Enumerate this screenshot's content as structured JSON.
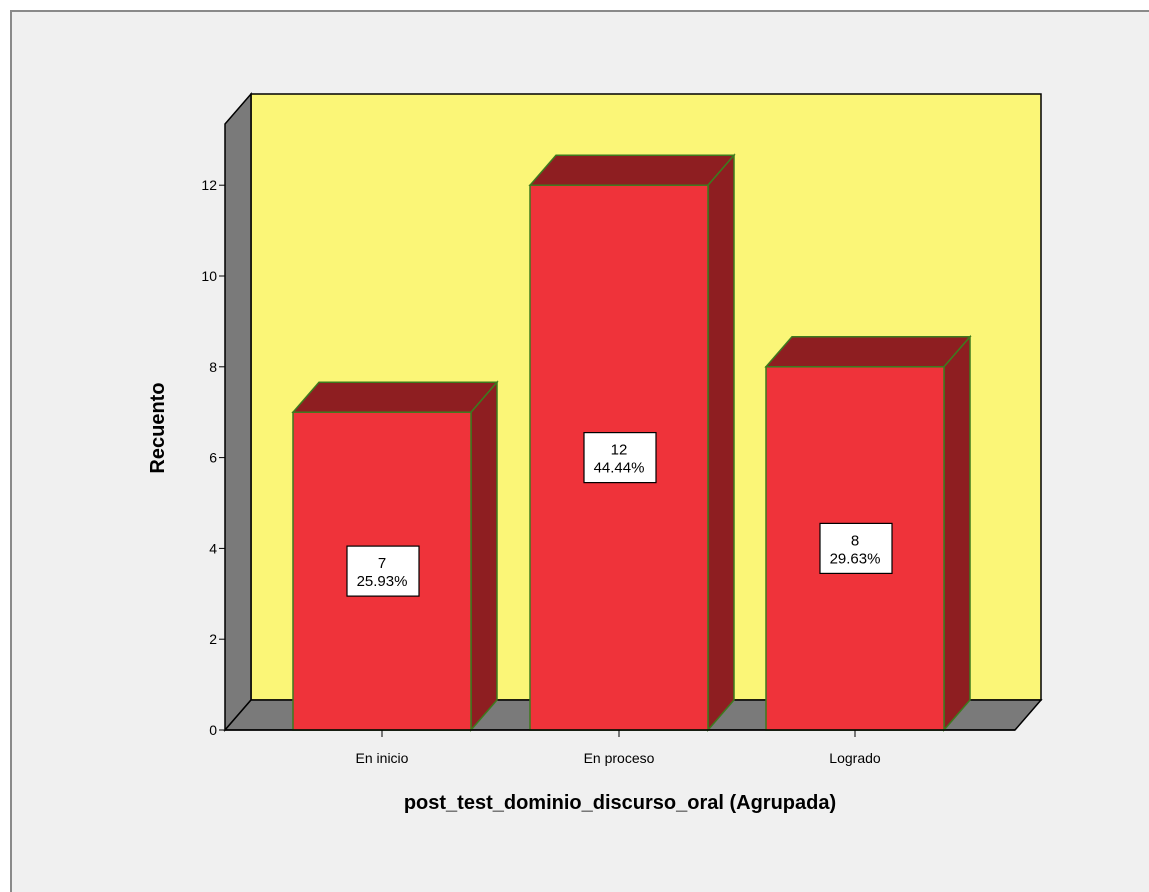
{
  "chart_data": {
    "type": "bar",
    "style": "3d",
    "categories": [
      "En inicio",
      "En proceso",
      "Logrado"
    ],
    "values": [
      7,
      12,
      8
    ],
    "percent_labels": [
      "25.93%",
      "44.44%",
      "29.63%"
    ],
    "count_labels": [
      "7",
      "12",
      "8"
    ],
    "xlabel": "post_test_dominio_discurso_oral (Agrupada)",
    "ylabel": "Recuento",
    "ylim": [
      0,
      13.5
    ],
    "yticks": [
      0,
      2,
      4,
      6,
      8,
      10,
      12
    ],
    "grid": false,
    "legend": "none",
    "colors": {
      "bar_front": "#ef333a",
      "bar_top": "#8e1e21",
      "bar_side": "#8e1e21",
      "bar_edge": "#3d7a1e",
      "back_wall": "#fbf677",
      "side_wall": "#7a7a7a",
      "floor": "#7a7a7a",
      "label_box": "#ffffff"
    }
  }
}
